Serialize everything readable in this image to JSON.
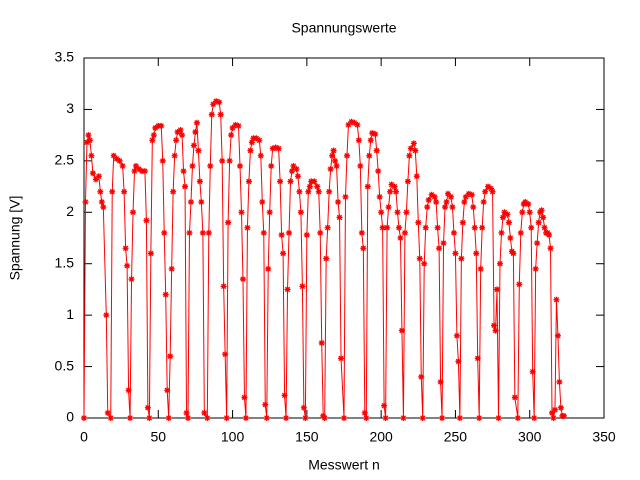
{
  "chart_data": {
    "type": "line",
    "title": "Spannungswerte",
    "x_label": "Messwert n",
    "y_label": "Spannung [V]",
    "color": "#ff0000",
    "x": [
      0,
      1,
      2,
      3,
      4,
      5,
      6,
      8,
      10,
      11,
      12,
      13,
      15,
      16,
      18,
      19,
      20,
      22,
      24,
      26,
      27,
      28,
      29,
      30,
      31,
      32,
      33,
      34,
      35,
      37,
      39,
      41,
      42,
      43,
      44,
      45,
      46,
      47,
      48,
      50,
      52,
      53,
      54,
      55,
      56,
      57,
      58,
      59,
      60,
      61,
      62,
      63,
      65,
      66,
      67,
      68,
      69,
      70,
      71,
      72,
      73,
      74,
      75,
      76,
      77,
      78,
      79,
      80,
      81,
      83,
      84,
      85,
      86,
      87,
      89,
      91,
      92,
      93,
      94,
      95,
      96,
      97,
      98,
      99,
      100,
      102,
      104,
      105,
      106,
      107,
      108,
      109,
      110,
      111,
      112,
      113,
      114,
      116,
      118,
      119,
      120,
      121,
      122,
      123,
      124,
      125,
      126,
      127,
      129,
      131,
      132,
      133,
      134,
      135,
      136,
      137,
      138,
      139,
      140,
      141,
      143,
      144,
      145,
      146,
      147,
      148,
      149,
      150,
      151,
      152,
      153,
      155,
      157,
      158,
      159,
      160,
      161,
      162,
      163,
      164,
      165,
      166,
      167,
      168,
      169,
      170,
      171,
      172,
      173,
      175,
      176,
      177,
      178,
      180,
      182,
      184,
      185,
      186,
      187,
      188,
      189,
      190,
      191,
      192,
      193,
      194,
      196,
      197,
      198,
      199,
      200,
      201,
      202,
      203,
      204,
      205,
      206,
      207,
      209,
      210,
      211,
      212,
      213,
      214,
      215,
      216,
      217,
      218,
      219,
      220,
      222,
      223,
      224,
      225,
      226,
      227,
      228,
      229,
      230,
      231,
      232,
      234,
      236,
      237,
      238,
      239,
      240,
      241,
      242,
      243,
      244,
      245,
      247,
      248,
      249,
      250,
      251,
      252,
      253,
      254,
      255,
      256,
      257,
      259,
      261,
      262,
      263,
      264,
      265,
      266,
      267,
      268,
      269,
      270,
      272,
      274,
      275,
      276,
      277,
      278,
      279,
      280,
      281,
      282,
      283,
      285,
      286,
      287,
      288,
      289,
      290,
      292,
      293,
      294,
      295,
      296,
      297,
      299,
      300,
      301,
      302,
      303,
      304,
      305,
      306,
      307,
      308,
      309,
      310,
      311,
      312,
      313,
      314,
      315,
      316,
      317,
      318,
      319,
      320,
      321,
      322,
      323
    ],
    "values": [
      0,
      2.1,
      2.68,
      2.75,
      2.7,
      2.55,
      2.38,
      2.32,
      2.35,
      2.2,
      2.1,
      2.05,
      1.0,
      0.05,
      0,
      2.2,
      2.55,
      2.52,
      2.5,
      2.45,
      2.2,
      1.65,
      1.48,
      0.27,
      0,
      1.35,
      2.0,
      2.4,
      2.45,
      2.42,
      2.4,
      2.4,
      1.92,
      0.1,
      0,
      1.6,
      2.7,
      2.75,
      2.82,
      2.84,
      2.84,
      2.5,
      1.8,
      1.2,
      0.27,
      0,
      0.6,
      1.45,
      2.2,
      2.55,
      2.7,
      2.78,
      2.8,
      2.75,
      2.4,
      2.25,
      0.05,
      0,
      1.8,
      2.1,
      2.45,
      2.65,
      2.78,
      2.87,
      2.6,
      2.3,
      2.1,
      1.8,
      0.05,
      0,
      1.8,
      2.45,
      2.95,
      3.05,
      3.08,
      3.07,
      2.95,
      2.5,
      1.28,
      0.62,
      0,
      1.9,
      2.5,
      2.75,
      2.82,
      2.85,
      2.84,
      2.45,
      2.0,
      1.35,
      0.2,
      0,
      1.85,
      2.3,
      2.6,
      2.68,
      2.72,
      2.72,
      2.7,
      2.55,
      2.1,
      1.8,
      0.13,
      0,
      1.45,
      2.0,
      2.45,
      2.62,
      2.63,
      2.62,
      2.3,
      1.78,
      1.6,
      0.22,
      0,
      1.25,
      1.8,
      2.3,
      2.4,
      2.45,
      2.42,
      2.35,
      2.2,
      2.0,
      1.28,
      0.1,
      0,
      1.78,
      2.2,
      2.25,
      2.3,
      2.3,
      2.25,
      2.2,
      1.8,
      0.73,
      0.02,
      0,
      1.55,
      1.85,
      2.2,
      2.42,
      2.55,
      2.6,
      2.5,
      2.45,
      2.1,
      1.95,
      0.58,
      0,
      2.15,
      2.55,
      2.85,
      2.88,
      2.87,
      2.85,
      2.7,
      2.45,
      1.8,
      1.65,
      0.05,
      0,
      2.25,
      2.55,
      2.7,
      2.77,
      2.76,
      2.6,
      2.4,
      2.15,
      2.0,
      1.85,
      0.12,
      0,
      1.85,
      2.05,
      2.2,
      2.27,
      2.25,
      2.2,
      2.0,
      1.85,
      1.75,
      0.85,
      0,
      1.8,
      2.0,
      2.3,
      2.55,
      2.62,
      2.67,
      2.6,
      2.35,
      1.9,
      1.55,
      0.4,
      0,
      1.5,
      1.85,
      2.05,
      2.12,
      2.17,
      2.15,
      2.1,
      1.85,
      1.65,
      0.35,
      0,
      1.7,
      2.05,
      2.1,
      2.18,
      2.15,
      2.05,
      1.8,
      1.6,
      0.8,
      0.55,
      0,
      1.55,
      1.9,
      2.1,
      2.15,
      2.18,
      2.17,
      2.05,
      1.85,
      1.6,
      0.58,
      0,
      1.45,
      1.85,
      2.1,
      2.2,
      2.25,
      2.23,
      2.2,
      0.9,
      0.85,
      1.25,
      0,
      1.5,
      1.8,
      1.95,
      2.0,
      1.98,
      1.9,
      1.75,
      1.62,
      1.6,
      0.2,
      0,
      1.3,
      1.8,
      2.0,
      2.08,
      2.1,
      2.08,
      2.0,
      1.85,
      0.45,
      0,
      1.45,
      1.7,
      1.9,
      2.0,
      2.02,
      1.95,
      1.85,
      1.8,
      1.8,
      1.78,
      1.65,
      0.05,
      0,
      0.08,
      1.15,
      0.8,
      0.35,
      0.1,
      0.02,
      0.02
    ],
    "xlim": [
      0,
      350
    ],
    "xticks": [
      0,
      50,
      100,
      150,
      200,
      250,
      300,
      350
    ],
    "ylim": [
      0,
      3.5
    ],
    "yticks": [
      0,
      0.5,
      1,
      1.5,
      2,
      2.5,
      3,
      3.5
    ],
    "grid": false
  }
}
